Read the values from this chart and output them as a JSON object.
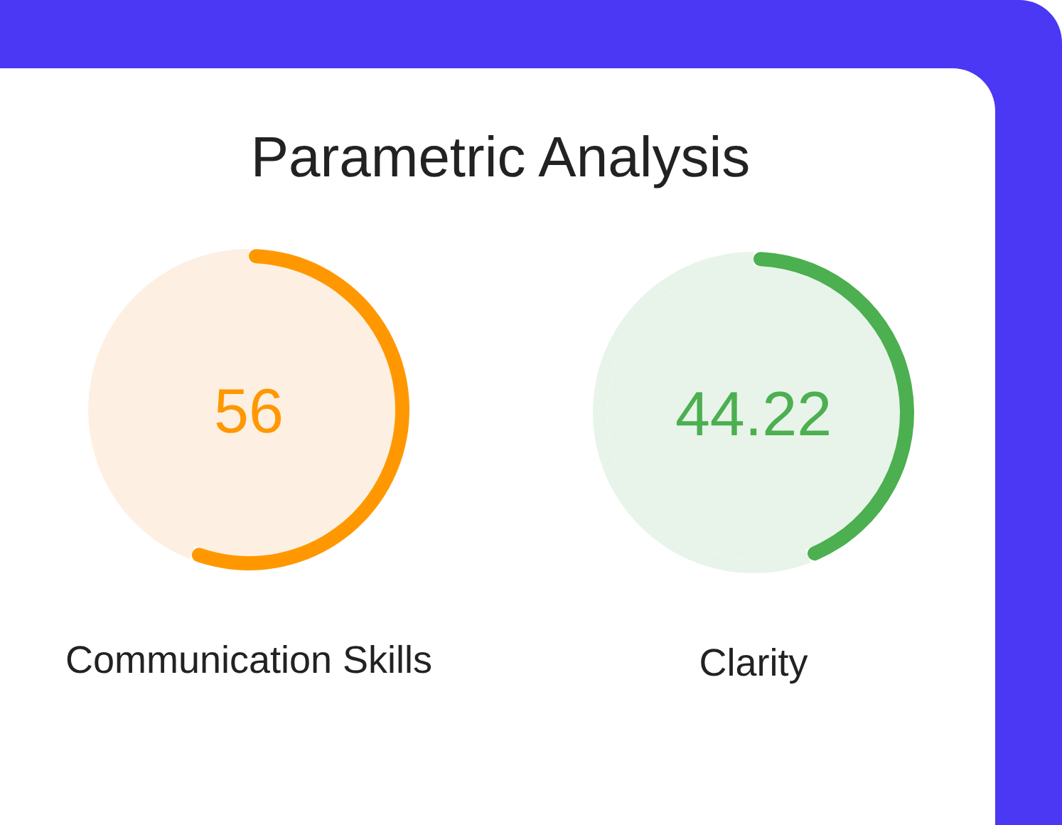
{
  "chart_data": [
    {
      "type": "donut",
      "title": "Parametric Analysis",
      "xlabel": "Communication Skills",
      "categories": [
        null,
        null
      ],
      "values": [
        56,
        44
      ],
      "colors": [
        "#ff9800",
        "#fdf0e2"
      ],
      "annotations": [
        "56"
      ]
    },
    {
      "type": "donut",
      "xlabel": "Clarity",
      "categories": [
        null,
        null
      ],
      "values": [
        44.22,
        55.78
      ],
      "colors": [
        "#4caf50",
        "#e8f4ea"
      ],
      "annotations": [
        "44.22"
      ]
    }
  ]
}
